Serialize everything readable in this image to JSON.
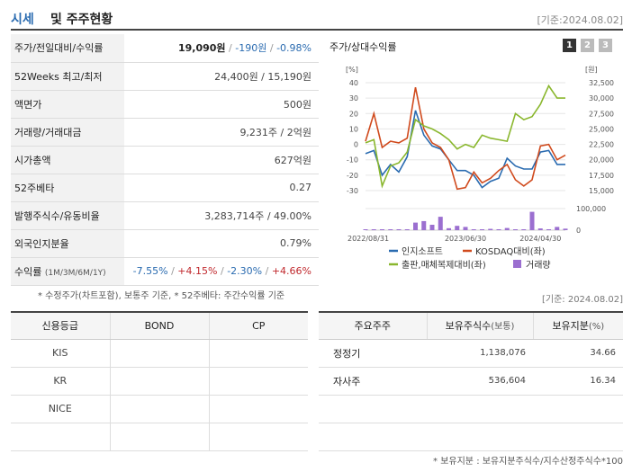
{
  "header": {
    "title_prefix": "시세",
    "title_rest": "및 주주현황",
    "date": "[기준:2024.08.02]"
  },
  "quote": {
    "price_label": "주가/전일대비/수익률",
    "price": "19,090원",
    "change": "-190원",
    "change_rate": "-0.98%",
    "w52_label": "52Weeks 최고/최저",
    "w52_value": "24,400원 / 15,190원",
    "par_label": "액면가",
    "par_value": "500원",
    "volume_label": "거래량/거래대금",
    "volume_value": "9,231주 / 2억원",
    "mcap_label": "시가총액",
    "mcap_value": "627억원",
    "beta_label": "52주베타",
    "beta_value": "0.27",
    "shares_label": "발행주식수/유동비율",
    "shares_value": "3,283,714주 / 49.00%",
    "foreign_label": "외국인지분율",
    "foreign_value": "0.79%",
    "return_label": "수익률",
    "return_periods": "(1M/3M/6M/1Y)",
    "returns": [
      "-7.55%",
      "+4.15%",
      "-2.30%",
      "+4.66%"
    ],
    "sep": "/"
  },
  "notes": {
    "left": "* 수정주가(차트포함), 보통주 기준, * 52주베타: 주간수익률 기준",
    "date2": "[기준: 2024.08.02]",
    "bottom": "* 보유지분 : 보유지분주식수/지수산정주식수*100"
  },
  "chart_panel": {
    "title": "주가/상대수익률",
    "tabs": [
      "1",
      "2",
      "3"
    ]
  },
  "chart_data": {
    "type": "line",
    "y_left_unit": "[%]",
    "y_right_unit": "[원]",
    "y_left_ticks": [
      40,
      30,
      20,
      10,
      0,
      -10,
      -20,
      -30
    ],
    "y_right_ticks": [
      "32,500",
      "30,000",
      "27,500",
      "25,000",
      "22,500",
      "20,000",
      "17,500",
      "15,000"
    ],
    "vol_ticks": [
      "100,000",
      "0"
    ],
    "x_ticks": [
      "2022/08/31",
      "2023/06/30",
      "2024/04/30"
    ],
    "series": [
      {
        "name": "인지소프트",
        "color": "#2a6bb0",
        "values": [
          -6,
          -4,
          -20,
          -13,
          -18,
          -8,
          22,
          6,
          -1,
          -3,
          -10,
          -17,
          -17,
          -20,
          -28,
          -24,
          -22,
          -9,
          -14,
          -16,
          -16,
          -5,
          -4,
          -13,
          -13
        ]
      },
      {
        "name": "KOSDAQ대비(좌)",
        "color": "#d04a1d",
        "values": [
          2,
          20,
          -2,
          2,
          1,
          4,
          37,
          10,
          1,
          -2,
          -10,
          -29,
          -28,
          -18,
          -25,
          -22,
          -17,
          -13,
          -23,
          -27,
          -23,
          -1,
          0,
          -10,
          -7
        ]
      },
      {
        "name": "출판,매체복제대비(좌)",
        "color": "#8ab72e",
        "values": [
          1,
          3,
          -27,
          -14,
          -12,
          -5,
          16,
          12,
          10,
          7,
          3,
          -3,
          0,
          -2,
          6,
          4,
          3,
          2,
          20,
          16,
          18,
          26,
          38,
          30,
          30
        ]
      }
    ],
    "volume": {
      "name": "거래량",
      "color": "#9b6fd0",
      "values": [
        3000,
        2000,
        2000,
        3000,
        2000,
        2000,
        35000,
        42000,
        25000,
        62000,
        9000,
        20000,
        15000,
        4000,
        2000,
        6000,
        3000,
        10000,
        3000,
        4000,
        85000,
        8000,
        4000,
        15000,
        7000
      ]
    }
  },
  "credit": {
    "headers": [
      "신용등급",
      "BOND",
      "CP"
    ],
    "rows": [
      [
        "KIS",
        "",
        ""
      ],
      [
        "KR",
        "",
        ""
      ],
      [
        "NICE",
        "",
        ""
      ],
      [
        "",
        "",
        ""
      ]
    ]
  },
  "holders": {
    "headers": [
      "주요주주",
      "보유주식수",
      "(보통)",
      "보유지분",
      "(%)"
    ],
    "rows": [
      {
        "name": "정정기",
        "shares": "1,138,076",
        "pct": "34.66"
      },
      {
        "name": "자사주",
        "shares": "536,604",
        "pct": "16.34"
      },
      {
        "name": "",
        "shares": "",
        "pct": ""
      },
      {
        "name": "",
        "shares": "",
        "pct": ""
      }
    ]
  }
}
